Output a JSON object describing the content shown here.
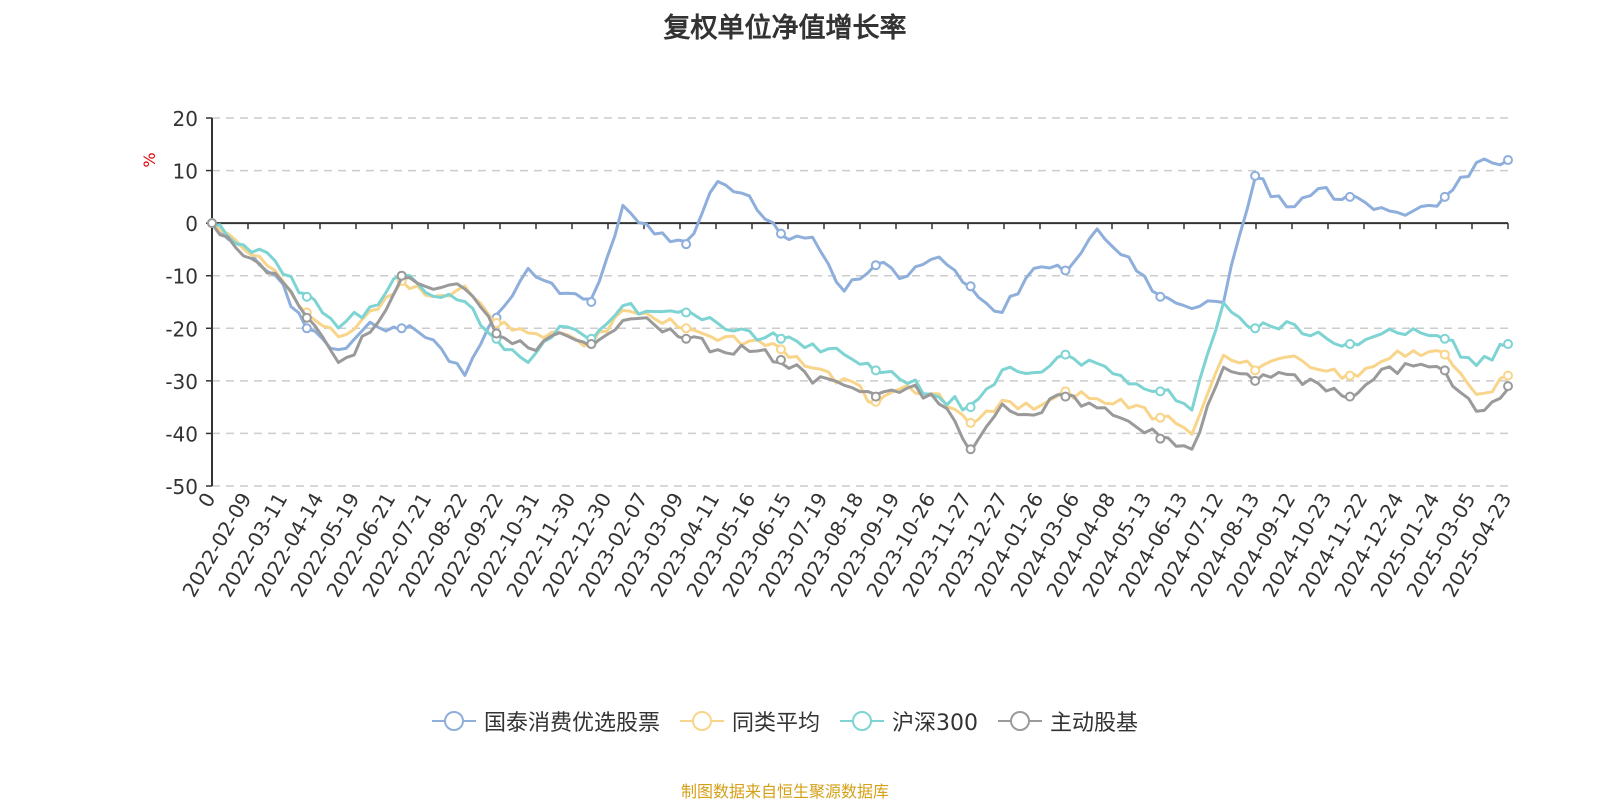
{
  "title": "复权单位净值增长率",
  "source_note": "制图数据来自恒生聚源数据库",
  "chart_data": {
    "type": "line",
    "ylabel": "%",
    "ylim": [
      -50,
      20
    ],
    "y_ticks": [
      20,
      10,
      0,
      -10,
      -20,
      -30,
      -40,
      -50
    ],
    "x_tick_labels": [
      "0",
      "2022-02-09",
      "2022-03-11",
      "2022-04-14",
      "2022-05-19",
      "2022-06-21",
      "2022-07-21",
      "2022-08-22",
      "2022-09-22",
      "2022-10-31",
      "2022-11-30",
      "2022-12-30",
      "2023-02-07",
      "2023-03-09",
      "2023-04-11",
      "2023-05-16",
      "2023-06-15",
      "2023-07-19",
      "2023-08-18",
      "2023-09-19",
      "2023-10-26",
      "2023-11-27",
      "2023-12-27",
      "2024-01-26",
      "2024-03-06",
      "2024-04-08",
      "2024-05-13",
      "2024-06-13",
      "2024-07-12",
      "2024-08-13",
      "2024-09-12",
      "2024-10-23",
      "2024-11-22",
      "2024-12-24",
      "2025-01-24",
      "2025-03-05",
      "2025-04-23"
    ],
    "grid": true,
    "legend_position": "bottom",
    "series": [
      {
        "name": "国泰消费优选股票",
        "color": "#8eaedb",
        "values": [
          0,
          -4,
          -10,
          -20,
          -24,
          -19,
          -20,
          -22,
          -29,
          -18,
          -9,
          -13,
          -15,
          3,
          -2,
          -4,
          8,
          5,
          -2,
          -3,
          -13,
          -8,
          -10,
          -6,
          -12,
          -17,
          -8,
          -9,
          -1,
          -7,
          -14,
          -16,
          -15,
          9,
          3,
          6,
          5,
          3,
          2,
          5,
          11,
          12
        ]
      },
      {
        "name": "同类平均",
        "color": "#f9d58b",
        "values": [
          0,
          -5,
          -9,
          -17,
          -22,
          -17,
          -11,
          -14,
          -12,
          -19,
          -21,
          -21,
          -23,
          -17,
          -18,
          -20,
          -22,
          -23,
          -24,
          -28,
          -30,
          -34,
          -31,
          -33,
          -38,
          -34,
          -35,
          -32,
          -33,
          -35,
          -37,
          -40,
          -25,
          -28,
          -25,
          -28,
          -29,
          -26,
          -24,
          -25,
          -33,
          -29
        ]
      },
      {
        "name": "沪深300",
        "color": "#7ed3d3",
        "values": [
          0,
          -4,
          -7,
          -14,
          -20,
          -16,
          -10,
          -14,
          -15,
          -22,
          -27,
          -20,
          -22,
          -16,
          -17,
          -17,
          -19,
          -21,
          -22,
          -23,
          -25,
          -28,
          -30,
          -33,
          -35,
          -28,
          -28,
          -25,
          -27,
          -30,
          -32,
          -35,
          -15,
          -20,
          -19,
          -21,
          -23,
          -21,
          -20,
          -22,
          -27,
          -23
        ]
      },
      {
        "name": "主动股基",
        "color": "#9a9a9a",
        "values": [
          0,
          -6,
          -10,
          -18,
          -27,
          -21,
          -10,
          -13,
          -12,
          -21,
          -24,
          -21,
          -23,
          -18,
          -19,
          -22,
          -24,
          -24,
          -26,
          -30,
          -31,
          -33,
          -31,
          -34,
          -43,
          -35,
          -36,
          -33,
          -35,
          -38,
          -41,
          -43,
          -27,
          -30,
          -29,
          -31,
          -33,
          -28,
          -27,
          -28,
          -36,
          -31
        ]
      }
    ]
  }
}
